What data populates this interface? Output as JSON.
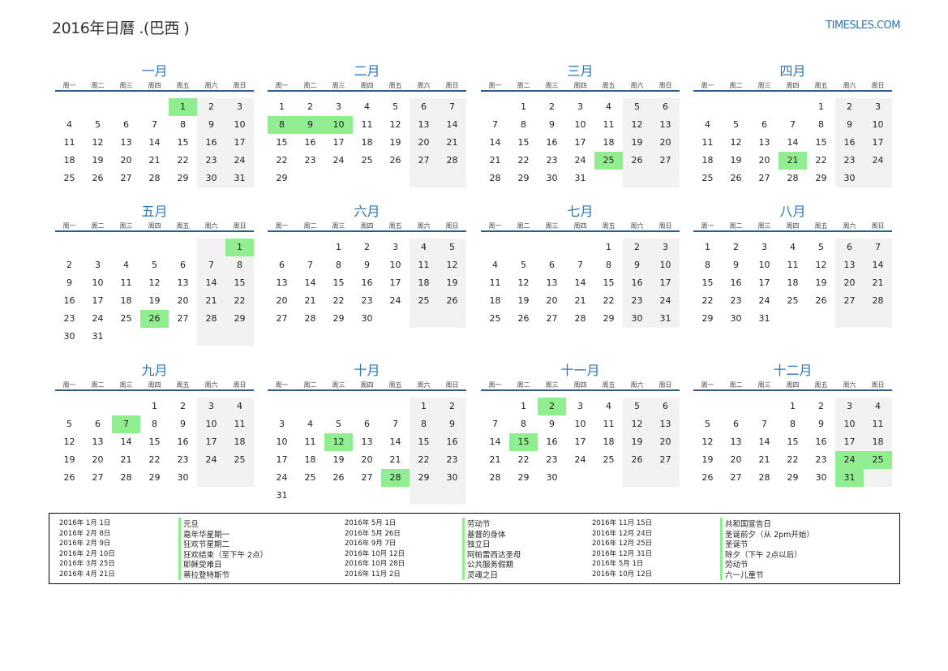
{
  "header": {
    "title": "2016年日曆 .(巴西 )",
    "brand": "TIMESLES.COM"
  },
  "weekdays": [
    "周一",
    "周二",
    "周三",
    "周四",
    "周五",
    "周六",
    "周日"
  ],
  "months": [
    {
      "name": "一月",
      "holidays": [
        1
      ],
      "weeks": [
        [
          null,
          null,
          null,
          null,
          1,
          2,
          3
        ],
        [
          4,
          5,
          6,
          7,
          8,
          9,
          10
        ],
        [
          11,
          12,
          13,
          14,
          15,
          16,
          17
        ],
        [
          18,
          19,
          20,
          21,
          22,
          23,
          24
        ],
        [
          25,
          26,
          27,
          28,
          29,
          30,
          31
        ]
      ]
    },
    {
      "name": "二月",
      "holidays": [
        8,
        9,
        10
      ],
      "weeks": [
        [
          1,
          2,
          3,
          4,
          5,
          6,
          7
        ],
        [
          8,
          9,
          10,
          11,
          12,
          13,
          14
        ],
        [
          15,
          16,
          17,
          18,
          19,
          20,
          21
        ],
        [
          22,
          23,
          24,
          25,
          26,
          27,
          28
        ],
        [
          29,
          null,
          null,
          null,
          null,
          null,
          null
        ]
      ]
    },
    {
      "name": "三月",
      "holidays": [
        25
      ],
      "weeks": [
        [
          null,
          1,
          2,
          3,
          4,
          5,
          6
        ],
        [
          7,
          8,
          9,
          10,
          11,
          12,
          13
        ],
        [
          14,
          15,
          16,
          17,
          18,
          19,
          20
        ],
        [
          21,
          22,
          23,
          24,
          25,
          26,
          27
        ],
        [
          28,
          29,
          30,
          31,
          null,
          null,
          null
        ]
      ]
    },
    {
      "name": "四月",
      "holidays": [
        21
      ],
      "weeks": [
        [
          null,
          null,
          null,
          null,
          1,
          2,
          3
        ],
        [
          4,
          5,
          6,
          7,
          8,
          9,
          10
        ],
        [
          11,
          12,
          13,
          14,
          15,
          16,
          17
        ],
        [
          18,
          19,
          20,
          21,
          22,
          23,
          24
        ],
        [
          25,
          26,
          27,
          28,
          29,
          30,
          null
        ]
      ]
    },
    {
      "name": "五月",
      "holidays": [
        1,
        26
      ],
      "weeks": [
        [
          null,
          null,
          null,
          null,
          null,
          null,
          1
        ],
        [
          2,
          3,
          4,
          5,
          6,
          7,
          8
        ],
        [
          9,
          10,
          11,
          12,
          13,
          14,
          15
        ],
        [
          16,
          17,
          18,
          19,
          20,
          21,
          22
        ],
        [
          23,
          24,
          25,
          26,
          27,
          28,
          29
        ],
        [
          30,
          31,
          null,
          null,
          null,
          null,
          null
        ]
      ]
    },
    {
      "name": "六月",
      "holidays": [],
      "weeks": [
        [
          null,
          null,
          1,
          2,
          3,
          4,
          5
        ],
        [
          6,
          7,
          8,
          9,
          10,
          11,
          12
        ],
        [
          13,
          14,
          15,
          16,
          17,
          18,
          19
        ],
        [
          20,
          21,
          22,
          23,
          24,
          25,
          26
        ],
        [
          27,
          28,
          29,
          30,
          null,
          null,
          null
        ]
      ]
    },
    {
      "name": "七月",
      "holidays": [],
      "weeks": [
        [
          null,
          null,
          null,
          null,
          1,
          2,
          3
        ],
        [
          4,
          5,
          6,
          7,
          8,
          9,
          10
        ],
        [
          11,
          12,
          13,
          14,
          15,
          16,
          17
        ],
        [
          18,
          19,
          20,
          21,
          22,
          23,
          24
        ],
        [
          25,
          26,
          27,
          28,
          29,
          30,
          31
        ]
      ]
    },
    {
      "name": "八月",
      "holidays": [],
      "weeks": [
        [
          1,
          2,
          3,
          4,
          5,
          6,
          7
        ],
        [
          8,
          9,
          10,
          11,
          12,
          13,
          14
        ],
        [
          15,
          16,
          17,
          18,
          19,
          20,
          21
        ],
        [
          22,
          23,
          24,
          25,
          26,
          27,
          28
        ],
        [
          29,
          30,
          31,
          null,
          null,
          null,
          null
        ]
      ]
    },
    {
      "name": "九月",
      "holidays": [
        7
      ],
      "weeks": [
        [
          null,
          null,
          null,
          1,
          2,
          3,
          4
        ],
        [
          5,
          6,
          7,
          8,
          9,
          10,
          11
        ],
        [
          12,
          13,
          14,
          15,
          16,
          17,
          18
        ],
        [
          19,
          20,
          21,
          22,
          23,
          24,
          25
        ],
        [
          26,
          27,
          28,
          29,
          30,
          null,
          null
        ]
      ]
    },
    {
      "name": "十月",
      "holidays": [
        12,
        28
      ],
      "weeks": [
        [
          null,
          null,
          null,
          null,
          null,
          1,
          2
        ],
        [
          3,
          4,
          5,
          6,
          7,
          8,
          9
        ],
        [
          10,
          11,
          12,
          13,
          14,
          15,
          16
        ],
        [
          17,
          18,
          19,
          20,
          21,
          22,
          23
        ],
        [
          24,
          25,
          26,
          27,
          28,
          29,
          30
        ],
        [
          31,
          null,
          null,
          null,
          null,
          null,
          null
        ]
      ]
    },
    {
      "name": "十一月",
      "holidays": [
        2,
        15
      ],
      "weeks": [
        [
          null,
          1,
          2,
          3,
          4,
          5,
          6
        ],
        [
          7,
          8,
          9,
          10,
          11,
          12,
          13
        ],
        [
          14,
          15,
          16,
          17,
          18,
          19,
          20
        ],
        [
          21,
          22,
          23,
          24,
          25,
          26,
          27
        ],
        [
          28,
          29,
          30,
          null,
          null,
          null,
          null
        ]
      ]
    },
    {
      "name": "十二月",
      "holidays": [
        24,
        25,
        31
      ],
      "weeks": [
        [
          null,
          null,
          null,
          1,
          2,
          3,
          4
        ],
        [
          5,
          6,
          7,
          8,
          9,
          10,
          11
        ],
        [
          12,
          13,
          14,
          15,
          16,
          17,
          18
        ],
        [
          19,
          20,
          21,
          22,
          23,
          24,
          25
        ],
        [
          26,
          27,
          28,
          29,
          30,
          31,
          null
        ]
      ]
    }
  ],
  "holiday_list": [
    [
      {
        "date": "2016年 1月 1日",
        "name": "元旦"
      },
      {
        "date": "2016年 2月 8日",
        "name": "嘉年华星期一"
      },
      {
        "date": "2016年 2月 9日",
        "name": "狂欢节星期二"
      },
      {
        "date": "2016年 2月 10日",
        "name": "狂欢结束（至下午 2点）"
      },
      {
        "date": "2016年 3月 25日",
        "name": "耶稣受难日"
      },
      {
        "date": "2016年 4月 21日",
        "name": "蒂拉登特斯节"
      }
    ],
    [
      {
        "date": "2016年 5月 1日",
        "name": "劳动节"
      },
      {
        "date": "2016年 5月 26日",
        "name": "基督的身体"
      },
      {
        "date": "2016年 9月 7日",
        "name": "独立日"
      },
      {
        "date": "2016年 10月 12日",
        "name": "阿帕雷西达圣母"
      },
      {
        "date": "2016年 10月 28日",
        "name": "公共服务假期"
      },
      {
        "date": "2016年 11月 2日",
        "name": "灵魂之日"
      }
    ],
    [
      {
        "date": "2016年 11月 15日",
        "name": "共和国宣告日"
      },
      {
        "date": "2016年 12月 24日",
        "name": "圣诞前夕（从 2pm开始）"
      },
      {
        "date": "2016年 12月 25日",
        "name": "圣诞节"
      },
      {
        "date": "2016年 12月 31日",
        "name": "除夕（下午 2点以后）"
      },
      {
        "date": "2016年 5月 1日",
        "name": "劳动节"
      },
      {
        "date": "2016年 10月 12日",
        "name": "六一儿童节"
      }
    ]
  ]
}
